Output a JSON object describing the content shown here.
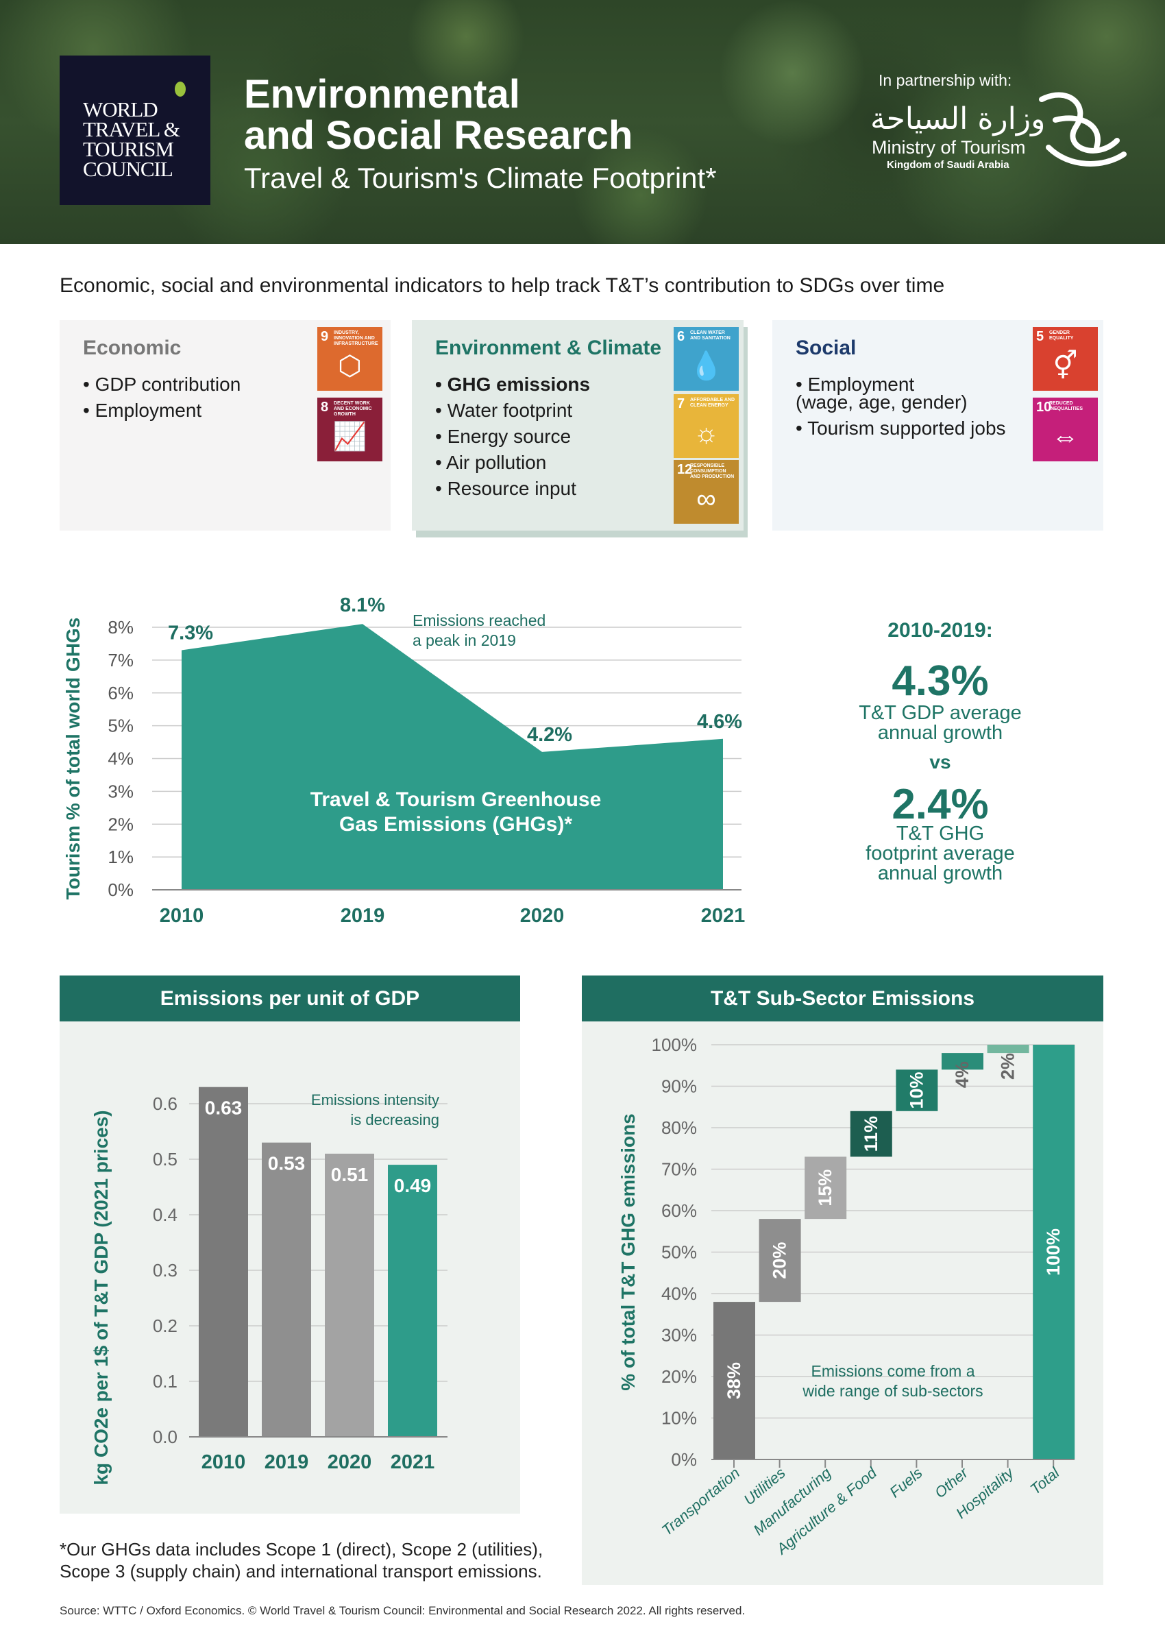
{
  "header": {
    "logo_text": [
      "WORLD",
      "TRAVEL &",
      "TOURISM",
      "COUNCIL"
    ],
    "title_line1": "Environmental",
    "title_line2": "and Social Research",
    "subtitle": "Travel & Tourism's Climate Footprint*",
    "partnership_label": "In partnership with:",
    "partner_arabic": "وزارة السياحة",
    "partner_name": "Ministry of Tourism",
    "partner_country": "Kingdom of Saudi Arabia"
  },
  "intro": "Economic, social and environmental indicators to help track T&T’s contribution to SDGs over time",
  "cards": [
    {
      "title": "Economic",
      "title_color": "#777777",
      "bg": "#f5f4f4",
      "bullets": [
        "• GDP contribution",
        "• Employment"
      ],
      "sdgs": [
        {
          "num": "9",
          "label": "INDUSTRY, INNOVATION AND INFRASTRUCTURE",
          "color": "#dd6a2e",
          "icon": "cubes-icon",
          "glyph": "⬡"
        },
        {
          "num": "8",
          "label": "DECENT WORK AND ECONOMIC GROWTH",
          "color": "#8a1f39",
          "icon": "growth-chart-icon",
          "glyph": "📈"
        }
      ]
    },
    {
      "title": "Environment & Climate",
      "title_color": "#1e7465",
      "bg": "#e3ebe7",
      "bullets": [
        "• GHG emissions",
        "• Water footprint",
        "• Energy source",
        "• Air pollution",
        "• Resource input"
      ],
      "sdgs": [
        {
          "num": "6",
          "label": "CLEAN WATER AND SANITATION",
          "color": "#3fa3cc",
          "icon": "water-drop-icon",
          "glyph": "💧"
        },
        {
          "num": "7",
          "label": "AFFORDABLE AND CLEAN ENERGY",
          "color": "#e8b53a",
          "icon": "sun-power-icon",
          "glyph": "☼"
        },
        {
          "num": "12",
          "label": "RESPONSIBLE CONSUMPTION AND PRODUCTION",
          "color": "#bf8b2e",
          "icon": "infinity-icon",
          "glyph": "∞"
        }
      ]
    },
    {
      "title": "Social",
      "title_color": "#1d3a6b",
      "bg": "#f1f5f8",
      "bullets": [
        "• Employment",
        "(wage, age, gender)",
        "• Tourism supported jobs"
      ],
      "sdgs": [
        {
          "num": "5",
          "label": "GENDER EQUALITY",
          "color": "#d9412f",
          "icon": "gender-equality-icon",
          "glyph": "⚥"
        },
        {
          "num": "10",
          "label": "REDUCED INEQUALITIES",
          "color": "#c51f7a",
          "icon": "arrows-equal-icon",
          "glyph": "⇔"
        }
      ]
    }
  ],
  "stats": {
    "period": "2010-2019:",
    "gdp_value": "4.3%",
    "gdp_label": [
      "T&T GDP average",
      "annual growth"
    ],
    "vs": "vs",
    "ghg_value": "2.4%",
    "ghg_label": [
      "T&T GHG",
      "footprint average",
      "annual growth"
    ]
  },
  "chart_data": [
    {
      "type": "area",
      "ylabel": "Tourism % of total world GHGs",
      "categories": [
        "2010",
        "2019",
        "2020",
        "2021"
      ],
      "values": [
        7.3,
        8.1,
        4.2,
        4.6
      ],
      "value_labels": [
        "7.3%",
        "8.1%",
        "4.2%",
        "4.6%"
      ],
      "ylim": [
        0,
        8
      ],
      "yticks": [
        "0%",
        "1%",
        "2%",
        "3%",
        "4%",
        "5%",
        "6%",
        "7%",
        "8%"
      ],
      "grid": true,
      "color": "#2e9c8a",
      "inner_label": [
        "Travel & Tourism Greenhouse",
        "Gas Emissions (GHGs)*"
      ],
      "annotation": [
        "Emissions reached",
        "a peak in 2019"
      ]
    },
    {
      "type": "bar",
      "title": "Emissions per unit of GDP",
      "ylabel": "kg CO2e per 1$ of T&T GDP (2021 prices)",
      "categories": [
        "2010",
        "2019",
        "2020",
        "2021"
      ],
      "values": [
        0.63,
        0.53,
        0.51,
        0.49
      ],
      "value_labels": [
        "0.63",
        "0.53",
        "0.51",
        "0.49"
      ],
      "colors": [
        "#7a7a7a",
        "#8f8f8f",
        "#a3a3a3",
        "#2e9c8a"
      ],
      "ylim": [
        0,
        0.6
      ],
      "yticks": [
        "0.0",
        "0.1",
        "0.2",
        "0.3",
        "0.4",
        "0.5",
        "0.6"
      ],
      "grid": true,
      "annotation": [
        "Emissions intensity",
        "is decreasing"
      ]
    },
    {
      "type": "bar",
      "subtype": "waterfall",
      "title": "T&T Sub-Sector Emissions",
      "ylabel": "% of total T&T GHG emissions",
      "categories": [
        "Transportation",
        "Utilities",
        "Manufacturing",
        "Agriculture & Food",
        "Fuels",
        "Other",
        "Hospitality",
        "Total"
      ],
      "values": [
        38,
        20,
        15,
        11,
        10,
        4,
        2,
        100
      ],
      "value_labels": [
        "38%",
        "20%",
        "15%",
        "11%",
        "10%",
        "4%",
        "2%",
        "100%"
      ],
      "colors": [
        "#777777",
        "#8e8e8e",
        "#a9a9a9",
        "#1d5e50",
        "#217c69",
        "#2a8d79",
        "#72b79e",
        "#2e9e8a"
      ],
      "ylim": [
        0,
        100
      ],
      "yticks": [
        "0%",
        "10%",
        "20%",
        "30%",
        "40%",
        "50%",
        "60%",
        "70%",
        "80%",
        "90%",
        "100%"
      ],
      "grid": true,
      "annotation": [
        "Emissions come from a",
        "wide range of sub-sectors"
      ]
    }
  ],
  "footnote": [
    "*Our GHGs data includes Scope 1 (direct), Scope 2 (utilities),",
    "Scope 3 (supply chain) and international transport emissions."
  ],
  "source": "Source: WTTC / Oxford Economics. © World Travel & Tourism Council: Environmental and Social Research 2022. All rights reserved."
}
